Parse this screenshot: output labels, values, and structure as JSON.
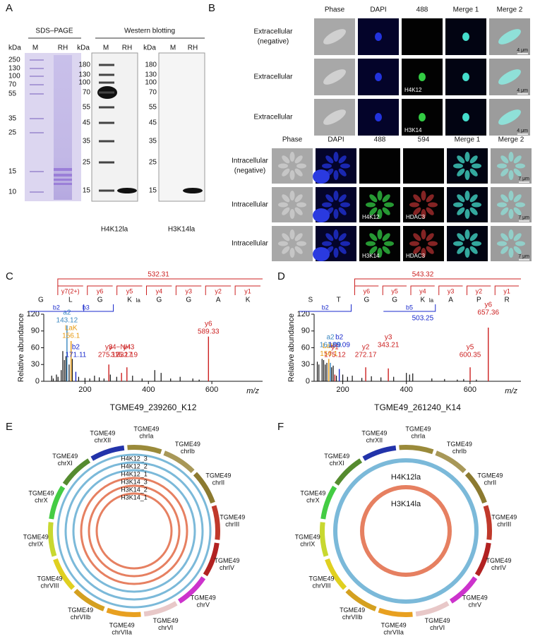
{
  "panel_a": {
    "label": "A",
    "sds_title": "SDS–PAGE",
    "wb_title": "Western blotting",
    "kda": "kDa",
    "lanes": [
      "M",
      "RH"
    ],
    "sds_markers": [
      "250",
      "130",
      "100",
      "70",
      "55",
      "35",
      "25",
      "15",
      "10"
    ],
    "wb_markers": [
      "180",
      "130",
      "100",
      "70",
      "55",
      "45",
      "35",
      "25",
      "15"
    ],
    "blots": [
      "H4K12la",
      "H3K14la"
    ]
  },
  "panel_b": {
    "label": "B",
    "negative": "(negative)",
    "top": {
      "columns": [
        "Phase",
        "DAPI",
        "488",
        "Merge 1",
        "Merge 2"
      ],
      "rows": [
        "Extracellular",
        "Extracellular",
        "Extracellular"
      ],
      "scale": "4 μm"
    },
    "bottom": {
      "columns": [
        "Phase",
        "DAPI",
        "488",
        "594",
        "Merge 1",
        "Merge 2"
      ],
      "rows": [
        "Intracellular",
        "Intracellular",
        "Intracellular"
      ],
      "scale": "7 μm"
    },
    "stains": [
      "H4K12",
      "H3K14"
    ],
    "enzyme": "HDAC3"
  },
  "panel_c": {
    "label": "C",
    "residues": [
      "G",
      "L",
      "G",
      "K",
      "G",
      "G",
      "A",
      "K"
    ],
    "modification": "la",
    "y_ions": [
      "y7(2+)",
      "y6",
      "y5",
      "y4",
      "y3",
      "y2",
      "y1"
    ],
    "b_ions": [
      "b2",
      "b3"
    ],
    "parent_mass": "532.31",
    "ylabel": "Relative abundance",
    "xlabel": "m/z",
    "title": "TGME49_239260_K12",
    "xlim": [
      70,
      760
    ],
    "xticks": [
      200,
      400,
      600
    ],
    "ylim": [
      0,
      120
    ],
    "yticks": [
      0,
      30,
      60,
      90,
      120
    ],
    "peaks": [
      {
        "ion": "a2",
        "mz": 143.12,
        "intensity": 100,
        "color": "#3a87c0"
      },
      {
        "ion": "LaK",
        "mz": 156.1,
        "intensity": 72,
        "color": "#e89a10"
      },
      {
        "ion": "b2",
        "mz": 171.11,
        "intensity": 17,
        "color": "#1a2acc"
      },
      {
        "ion": "y3",
        "mz": 275.17,
        "intensity": 30,
        "color": "#cc2020"
      },
      {
        "ion": "y4−NH3",
        "mz": 315.17,
        "intensity": 15,
        "color": "#cc2020"
      },
      {
        "ion": "y4",
        "mz": 332.19,
        "intensity": 25,
        "color": "#cc2020"
      },
      {
        "ion": "y6",
        "mz": 589.33,
        "intensity": 80,
        "color": "#cc2020"
      }
    ],
    "background": {
      "mz": [
        95,
        100,
        110,
        115,
        125,
        130,
        135,
        140,
        150,
        160,
        180,
        200,
        215,
        230,
        245,
        260,
        280,
        300,
        350,
        380,
        420,
        440,
        470,
        500,
        540,
        560
      ],
      "intensity": [
        10,
        5,
        12,
        8,
        20,
        54,
        38,
        45,
        30,
        40,
        8,
        6,
        5,
        10,
        7,
        5,
        12,
        8,
        10,
        5,
        20,
        15,
        5,
        8,
        5,
        3
      ],
      "color": "#111111"
    }
  },
  "panel_d": {
    "label": "D",
    "residues": [
      "S",
      "T",
      "G",
      "G",
      "K",
      "A",
      "P",
      "R"
    ],
    "modification": "la",
    "y_ions": [
      "y6",
      "y5",
      "y4",
      "y3",
      "y2",
      "y1"
    ],
    "b_ions": [
      "b2",
      "b5"
    ],
    "b5_mass": "503.25",
    "parent_mass": "543.32",
    "ylabel": "Relative abundance",
    "xlabel": "m/z",
    "title": "TGME49_261240_K14",
    "xlim": [
      110,
      760
    ],
    "xticks": [
      200,
      400,
      600
    ],
    "ylim": [
      0,
      120
    ],
    "yticks": [
      0,
      30,
      60,
      90,
      120
    ],
    "peaks": [
      {
        "ion": "LaK",
        "mz": 156.1,
        "intensity": 40,
        "color": "#e89a10"
      },
      {
        "ion": "a2",
        "mz": 161.09,
        "intensity": 33,
        "color": "#3a87c0"
      },
      {
        "ion": "y1",
        "mz": 175.12,
        "intensity": 12,
        "color": "#cc2020"
      },
      {
        "ion": "b2",
        "mz": 189.09,
        "intensity": 22,
        "color": "#1a2acc"
      },
      {
        "ion": "y2",
        "mz": 272.17,
        "intensity": 25,
        "color": "#cc2020"
      },
      {
        "ion": "y3",
        "mz": 343.21,
        "intensity": 23,
        "color": "#cc2020"
      },
      {
        "ion": "y5",
        "mz": 600.35,
        "intensity": 25,
        "color": "#cc2020"
      },
      {
        "ion": "y6",
        "mz": 657.36,
        "intensity": 96,
        "color": "#cc2020"
      }
    ],
    "background": {
      "mz": [
        120,
        125,
        135,
        140,
        145,
        150,
        165,
        170,
        180,
        200,
        215,
        230,
        260,
        290,
        320,
        360,
        400,
        410,
        420,
        480,
        520,
        560,
        580,
        620
      ],
      "intensity": [
        35,
        30,
        40,
        38,
        30,
        33,
        25,
        28,
        10,
        12,
        8,
        10,
        6,
        9,
        7,
        8,
        15,
        12,
        14,
        5,
        4,
        3,
        4,
        3
      ],
      "color": "#111111"
    }
  },
  "genome": "TGME49",
  "chromosomes": [
    {
      "name": "chrIa",
      "color": "#9a8a3a"
    },
    {
      "name": "chrIb",
      "color": "#a89858"
    },
    {
      "name": "chrII",
      "color": "#8c7a30"
    },
    {
      "name": "chrIII",
      "color": "#c0392b"
    },
    {
      "name": "chrIV",
      "color": "#b22222"
    },
    {
      "name": "chrV",
      "color": "#cc33cc"
    },
    {
      "name": "chrVI",
      "color": "#e8c8c8"
    },
    {
      "name": "chrVIIa",
      "color": "#e8a020"
    },
    {
      "name": "chrVIIb",
      "color": "#d4a020"
    },
    {
      "name": "chrVIII",
      "color": "#e0d020"
    },
    {
      "name": "chrIX",
      "color": "#c8d830"
    },
    {
      "name": "chrX",
      "color": "#44cc44"
    },
    {
      "name": "chrXI",
      "color": "#558b2f"
    },
    {
      "name": "chrXII",
      "color": "#2233aa"
    }
  ],
  "panel_e": {
    "label": "E",
    "tracks": [
      {
        "name": "H4K12_3",
        "color": "#5aa7cf"
      },
      {
        "name": "H4K12_2",
        "color": "#5aa7cf"
      },
      {
        "name": "H4K12_1",
        "color": "#5aa7cf"
      },
      {
        "name": "H3K14_3",
        "color": "#e0603a"
      },
      {
        "name": "H3K14_2",
        "color": "#e0603a"
      },
      {
        "name": "H3K14_1",
        "color": "#e0603a"
      }
    ]
  },
  "panel_f": {
    "label": "F",
    "tracks": [
      {
        "name": "H4K12la",
        "color": "#5aa7cf"
      },
      {
        "name": "H3K14la",
        "color": "#e0603a"
      }
    ]
  }
}
